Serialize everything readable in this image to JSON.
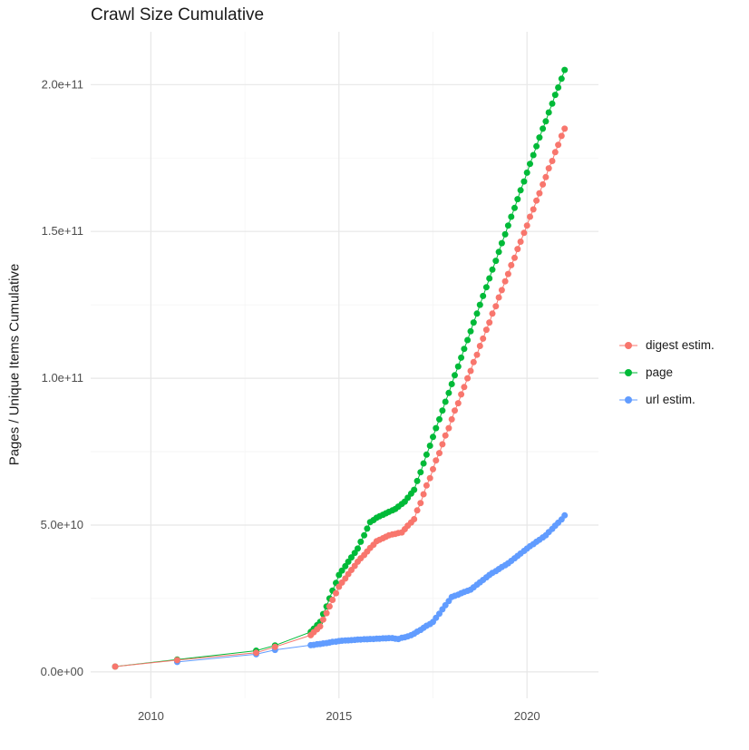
{
  "chart_data": {
    "type": "line",
    "title": "Crawl Size Cumulative",
    "xlabel": "",
    "ylabel": "Pages / Unique Items Cumulative",
    "legend_position": "right",
    "background_color": "#FFFFFF",
    "major_grid_color": "#E7E7E7",
    "minor_grid_color": "#F3F3F3",
    "tick_label_color": "#4D4D4D",
    "grid": true,
    "xlim": [
      2008.4,
      2021.9
    ],
    "ylim_billions": [
      -9,
      218
    ],
    "x_ticks": [
      {
        "value": 2010,
        "label": "2010"
      },
      {
        "value": 2015,
        "label": "2015"
      },
      {
        "value": 2020,
        "label": "2020"
      }
    ],
    "y_ticks": [
      {
        "value_billions": 0,
        "label": "0.0e+00"
      },
      {
        "value_billions": 50,
        "label": "5.0e+10"
      },
      {
        "value_billions": 100,
        "label": "1.0e+11"
      },
      {
        "value_billions": 150,
        "label": "1.5e+11"
      },
      {
        "value_billions": 200,
        "label": "2.0e+11"
      }
    ],
    "x_minor": [
      2012.5,
      2017.5
    ],
    "y_minor_billions": [
      25,
      75,
      125,
      175
    ],
    "y_unit_note": "values_billions are in units of 1e9 pages / unique items (cumulative)",
    "z_order": [
      1,
      2,
      0
    ],
    "x": [
      2009.05,
      2010.7,
      2012.8,
      2013.3,
      2014.25,
      2014.33,
      2014.42,
      2014.5,
      2014.58,
      2014.67,
      2014.75,
      2014.83,
      2014.92,
      2015.0,
      2015.08,
      2015.17,
      2015.25,
      2015.33,
      2015.42,
      2015.5,
      2015.58,
      2015.67,
      2015.75,
      2015.83,
      2015.92,
      2016.0,
      2016.08,
      2016.17,
      2016.25,
      2016.33,
      2016.42,
      2016.5,
      2016.58,
      2016.67,
      2016.75,
      2016.83,
      2016.92,
      2017.0,
      2017.08,
      2017.17,
      2017.25,
      2017.33,
      2017.42,
      2017.5,
      2017.58,
      2017.67,
      2017.75,
      2017.83,
      2017.92,
      2018.0,
      2018.08,
      2018.17,
      2018.25,
      2018.33,
      2018.42,
      2018.5,
      2018.58,
      2018.67,
      2018.75,
      2018.83,
      2018.92,
      2019.0,
      2019.08,
      2019.17,
      2019.25,
      2019.33,
      2019.42,
      2019.5,
      2019.58,
      2019.67,
      2019.75,
      2019.83,
      2019.92,
      2020.0,
      2020.08,
      2020.17,
      2020.25,
      2020.33,
      2020.42,
      2020.5,
      2020.58,
      2020.67,
      2020.75,
      2020.83,
      2020.92,
      2021.0
    ],
    "series": [
      {
        "name": "digest estim.",
        "color": "#F8766D",
        "values_billions": [
          1.8,
          4.0,
          6.5,
          8.5,
          12.5,
          13.5,
          14.5,
          15.5,
          17.8,
          20,
          22.3,
          24.5,
          26.8,
          29,
          30.4,
          31.8,
          33.3,
          34.7,
          36.1,
          37.5,
          38.7,
          39.8,
          41,
          42.2,
          43.3,
          44.5,
          45,
          45.5,
          46,
          46.5,
          46.8,
          47,
          47.3,
          47.5,
          48.6,
          49.8,
          50.9,
          52,
          55,
          57.5,
          60.5,
          63.5,
          66,
          69,
          72,
          74.5,
          77.5,
          80.5,
          83,
          86,
          89,
          91.5,
          94.5,
          97,
          100,
          102.5,
          105.5,
          108,
          111,
          113.5,
          116.5,
          119,
          122,
          124.5,
          127.5,
          130,
          133,
          135.5,
          138.5,
          141,
          144,
          146.5,
          149.5,
          152,
          155,
          157.5,
          160.5,
          163,
          166,
          168.5,
          171.5,
          174,
          177,
          179.5,
          182.5,
          185
        ]
      },
      {
        "name": "page",
        "color": "#00BA38",
        "values_billions": [
          1.8,
          4.2,
          7.2,
          9.0,
          13.6,
          14.7,
          15.9,
          17,
          19.7,
          22.3,
          25,
          27.7,
          30.3,
          33,
          34.5,
          36,
          37.5,
          39,
          40.5,
          42,
          44.3,
          46.5,
          48.8,
          51,
          51.7,
          52.5,
          53,
          53.5,
          54,
          54.5,
          55,
          55.5,
          56.3,
          57.2,
          58,
          59.3,
          60.7,
          62,
          65,
          68,
          71,
          74,
          77,
          80,
          83,
          86,
          89,
          92,
          95,
          98,
          101,
          104,
          107,
          110,
          113,
          116,
          119,
          122,
          125,
          128,
          131,
          134,
          137,
          140,
          143,
          146,
          149,
          152,
          155,
          158,
          161,
          164,
          167,
          170,
          173,
          176,
          179,
          182,
          185,
          187.5,
          190.5,
          193.5,
          196.5,
          199,
          202,
          205
        ]
      },
      {
        "name": "url estim.",
        "color": "#619CFF",
        "values_billions": [
          null,
          3.4,
          6.0,
          7.5,
          9.1,
          9.2,
          9.4,
          9.5,
          9.7,
          9.8,
          10,
          10.2,
          10.3,
          10.5,
          10.6,
          10.7,
          10.75,
          10.8,
          10.9,
          11,
          11,
          11.1,
          11.1,
          11.2,
          11.2,
          11.3,
          11.3,
          11.4,
          11.4,
          11.5,
          11.5,
          11.3,
          11.2,
          11.6,
          11.8,
          12.1,
          12.5,
          13,
          13.7,
          14.3,
          15,
          15.7,
          16.3,
          17,
          18.4,
          19.8,
          21.3,
          22.7,
          24.1,
          25.5,
          25.9,
          26.3,
          26.8,
          27.2,
          27.6,
          28,
          28.8,
          29.7,
          30.5,
          31.3,
          32.2,
          33,
          33.7,
          34.3,
          35,
          35.7,
          36.3,
          37,
          37.8,
          38.7,
          39.5,
          40.3,
          41.2,
          42,
          42.8,
          43.5,
          44.3,
          45,
          45.8,
          46.5,
          47.6,
          48.7,
          49.8,
          50.8,
          51.9,
          53.3
        ]
      }
    ]
  }
}
